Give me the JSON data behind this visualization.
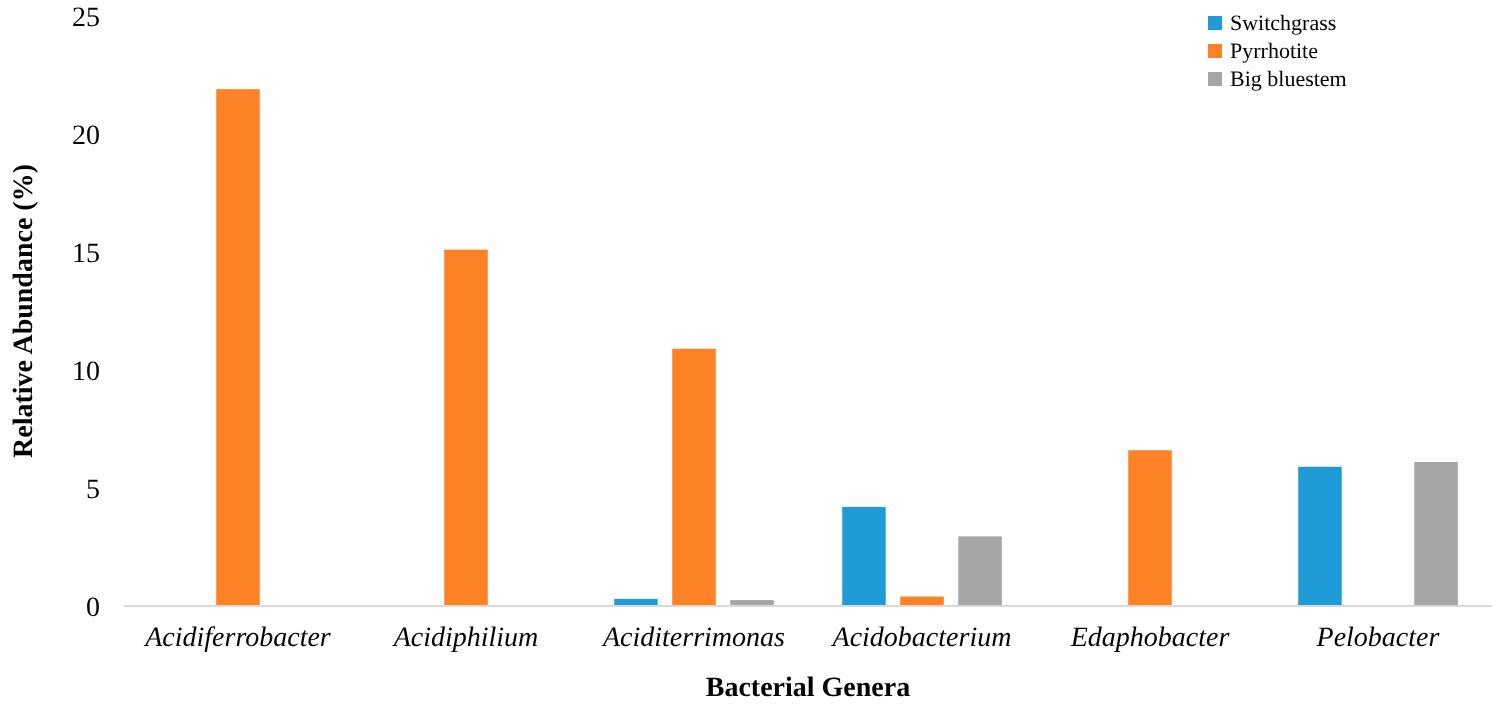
{
  "chart_data": {
    "type": "bar",
    "xlabel": "Bacterial Genera",
    "ylabel": "Relative Abundance (%)",
    "categories": [
      "Acidiferrobacter",
      "Acidiphilium",
      "Aciditerrimonas",
      "Acidobacterium",
      "Edaphobacter",
      "Pelobacter"
    ],
    "series": [
      {
        "name": "Switchgrass",
        "color": "#1f9bd7",
        "values": [
          null,
          null,
          0.3,
          4.2,
          null,
          5.9
        ]
      },
      {
        "name": "Pyrrhotite",
        "color": "#fd8226",
        "values": [
          21.9,
          15.1,
          10.9,
          0.4,
          6.6,
          null
        ]
      },
      {
        "name": "Big bluestem",
        "color": "#a5a5a5",
        "values": [
          null,
          null,
          0.25,
          2.95,
          null,
          6.1
        ]
      }
    ],
    "ylim": [
      0,
      25
    ],
    "yticks": [
      0,
      5,
      10,
      15,
      20,
      25
    ],
    "grid": false,
    "legend": "top right"
  }
}
